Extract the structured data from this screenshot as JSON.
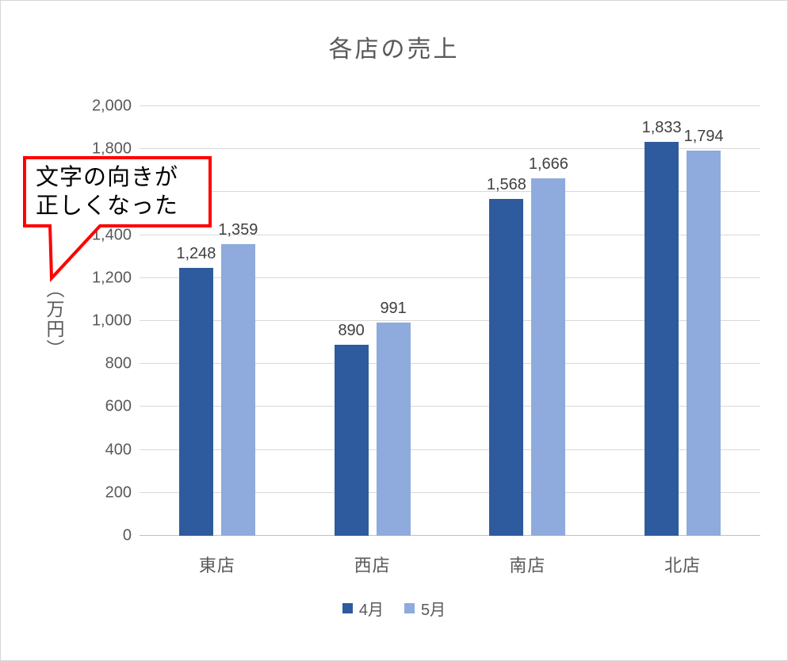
{
  "chart_data": {
    "type": "bar",
    "title": "各店の売上",
    "categories": [
      "東店",
      "西店",
      "南店",
      "北店"
    ],
    "series": [
      {
        "name": "4月",
        "color": "#2e5b9d",
        "values": [
          1248,
          890,
          1568,
          1833
        ],
        "labels": [
          "1,248",
          "890",
          "1,568",
          "1,833"
        ]
      },
      {
        "name": "5月",
        "color": "#8faadc",
        "values": [
          1359,
          991,
          1666,
          1794
        ],
        "labels": [
          "1,359",
          "991",
          "1,666",
          "1,794"
        ]
      }
    ],
    "xlabel": "",
    "ylabel": "（万円）",
    "ylim": [
      0,
      2000
    ],
    "ytick_interval": 200,
    "yticks": [
      "0",
      "200",
      "400",
      "600",
      "800",
      "1,000",
      "1,200",
      "1,400",
      "1,600",
      "1,800",
      "2,000"
    ],
    "grid": true,
    "legend_position": "bottom"
  },
  "callout": {
    "text": "文字の向きが正しくなった",
    "lines": [
      "文字の向きが",
      "正しくなった"
    ],
    "border_color": "#ff0000",
    "fill_color": "#ffffff"
  },
  "colors": {
    "series1": "#2e5b9d",
    "series2": "#8faadc",
    "gridline": "#d9d9d9",
    "axis_text": "#595959",
    "data_label": "#404040",
    "callout_border": "#ff0000"
  }
}
